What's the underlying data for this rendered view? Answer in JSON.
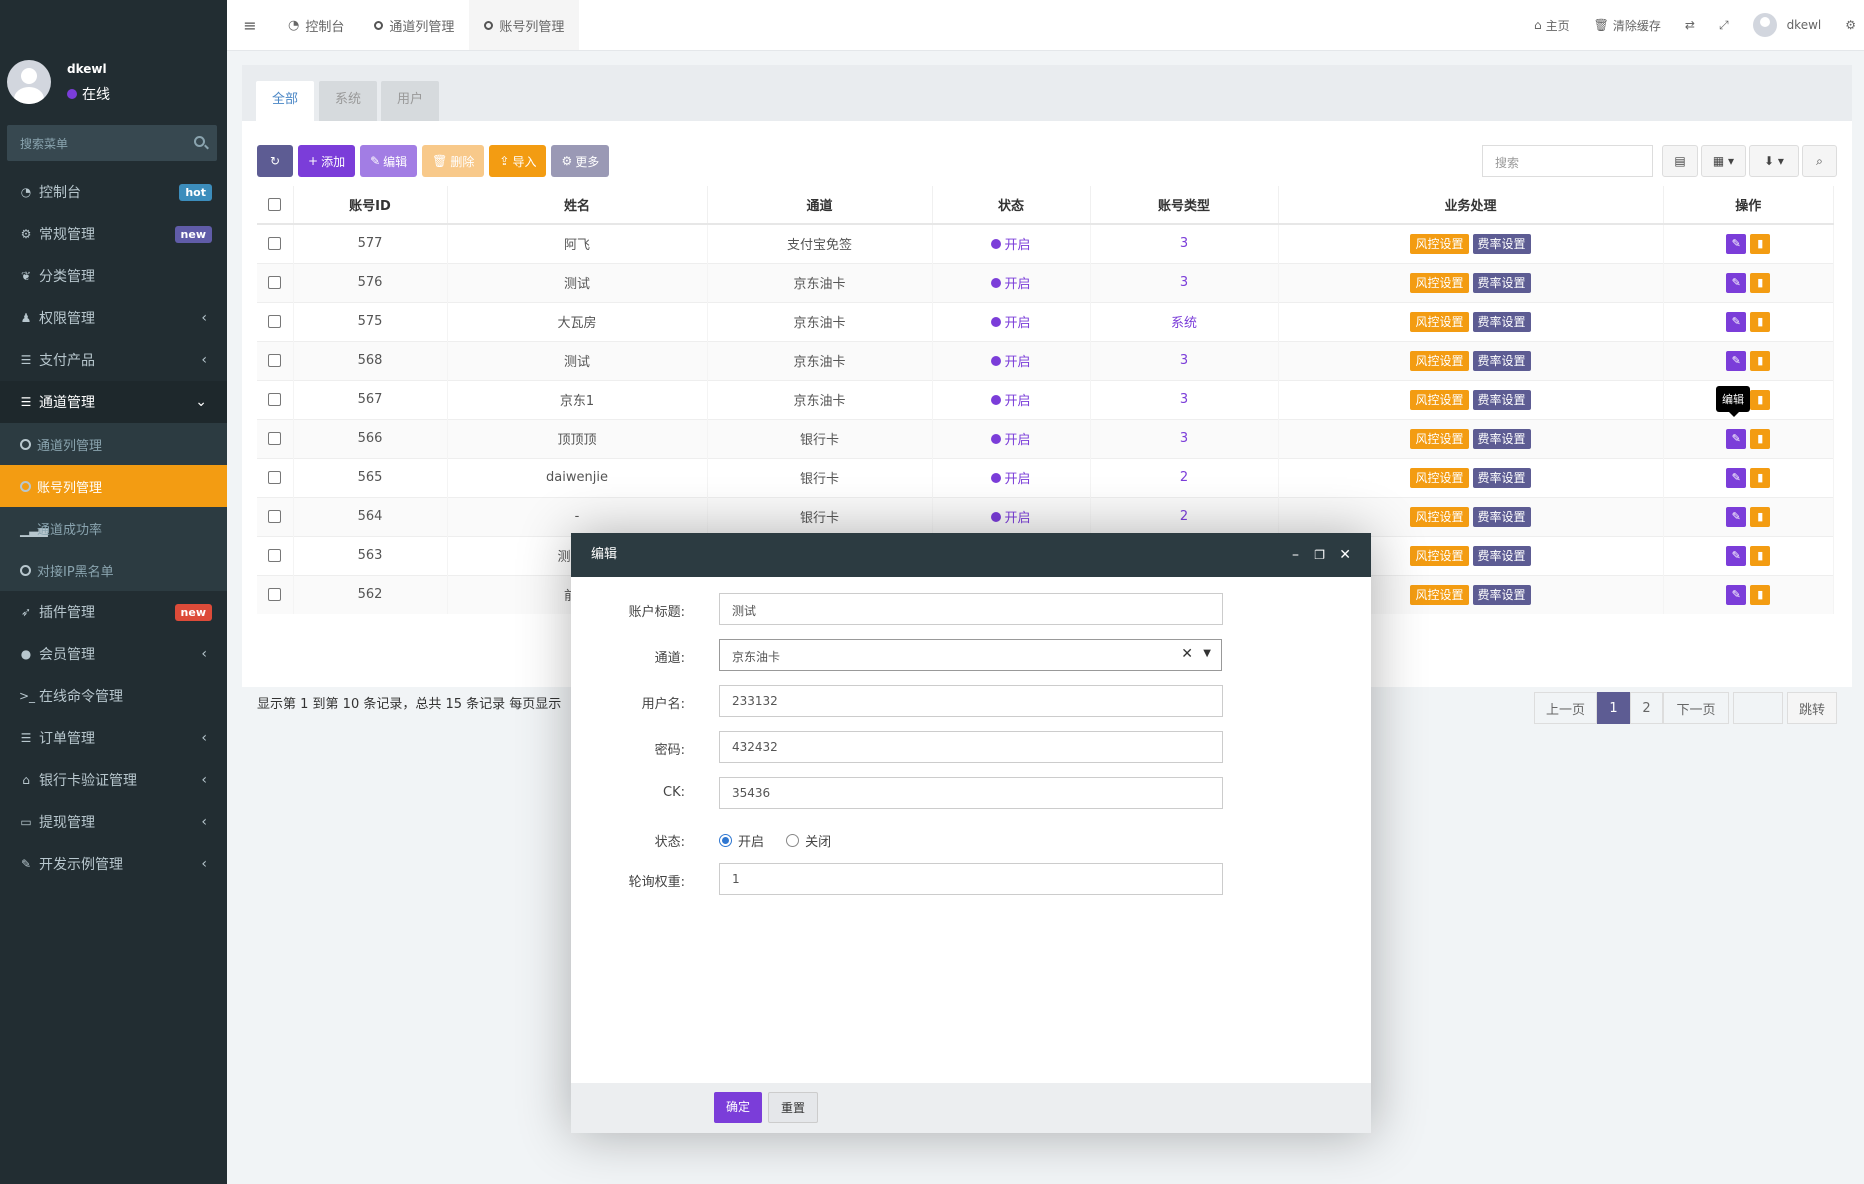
{
  "sidebar": {
    "user_name": "dkewl",
    "user_status": "在线",
    "search_placeholder": "搜索菜单",
    "items": [
      {
        "label": "控制台",
        "badge": "hot",
        "badge_color": "#3c8dbc"
      },
      {
        "label": "常规管理",
        "badge": "new",
        "badge_color": "#605ca8"
      },
      {
        "label": "分类管理"
      },
      {
        "label": "权限管理",
        "arrow": "‹"
      },
      {
        "label": "支付产品",
        "arrow": "‹"
      },
      {
        "label": "通道管理",
        "arrow": "⌄"
      },
      {
        "label": "插件管理",
        "badge": "new",
        "badge_color": "#dd4b39"
      },
      {
        "label": "会员管理",
        "arrow": "‹"
      },
      {
        "label": "在线命令管理"
      },
      {
        "label": "订单管理",
        "arrow": "‹"
      },
      {
        "label": "银行卡验证管理",
        "arrow": "‹"
      },
      {
        "label": "提现管理",
        "arrow": "‹"
      },
      {
        "label": "开发示例管理",
        "arrow": "‹"
      }
    ],
    "sub_items": [
      {
        "label": "通道列管理"
      },
      {
        "label": "账号列管理"
      },
      {
        "label": "通道成功率"
      },
      {
        "label": "对接IP黑名单"
      }
    ]
  },
  "navbar": {
    "tabs": [
      "控制台",
      "通道列管理",
      "账号列管理"
    ],
    "home": "主页",
    "clear_cache": "清除缓存",
    "user": "dkewl"
  },
  "panel": {
    "tabs": [
      "全部",
      "系统",
      "用户"
    ],
    "toolbar": {
      "add": "添加",
      "edit": "编辑",
      "delete": "删除",
      "import": "导入",
      "more": "更多"
    },
    "search_placeholder": "搜索"
  },
  "table": {
    "headers": [
      "账号ID",
      "姓名",
      "通道",
      "状态",
      "账号类型",
      "业务处理",
      "操作"
    ],
    "rows": [
      {
        "id": "577",
        "name": "阿飞",
        "channel": "支付宝免签",
        "status": "开启",
        "type": "3"
      },
      {
        "id": "576",
        "name": "测试",
        "channel": "京东油卡",
        "status": "开启",
        "type": "3"
      },
      {
        "id": "575",
        "name": "大瓦房",
        "channel": "京东油卡",
        "status": "开启",
        "type": "系统"
      },
      {
        "id": "568",
        "name": "测试",
        "channel": "京东油卡",
        "status": "开启",
        "type": "3"
      },
      {
        "id": "567",
        "name": "京东1",
        "channel": "京东油卡",
        "status": "开启",
        "type": "3"
      },
      {
        "id": "566",
        "name": "顶顶顶",
        "channel": "银行卡",
        "status": "开启",
        "type": "3"
      },
      {
        "id": "565",
        "name": "daiwenjie",
        "channel": "银行卡",
        "status": "开启",
        "type": "2"
      },
      {
        "id": "564",
        "name": "-",
        "channel": "银行卡",
        "status": "开启",
        "type": "2"
      },
      {
        "id": "563",
        "name": "测试卖",
        "channel": "",
        "status": "",
        "type": ""
      },
      {
        "id": "562",
        "name": "前台",
        "channel": "",
        "status": "",
        "type": ""
      }
    ],
    "risk_label": "风控设置",
    "rate_label": "费率设置"
  },
  "tooltip": "编辑",
  "pagination": {
    "info": "显示第 1 到第 10 条记录，总共 15 条记录 每页显示",
    "prev": "上一页",
    "pages": [
      "1",
      "2"
    ],
    "next": "下一页",
    "jump": "跳转"
  },
  "modal": {
    "title": "编辑",
    "fields": {
      "title_label": "账户标题:",
      "title_value": "测试",
      "channel_label": "通道:",
      "channel_value": "京东油卡",
      "username_label": "用户名:",
      "username_value": "233132",
      "password_label": "密码:",
      "password_value": "432432",
      "ck_label": "CK:",
      "ck_value": "35436",
      "status_label": "状态:",
      "status_on": "开启",
      "status_off": "关闭",
      "weight_label": "轮询权重:",
      "weight_value": "1"
    },
    "confirm": "确定",
    "reset": "重置"
  },
  "colors": {
    "purple": "#7b3dd9",
    "orange": "#f39c12",
    "sidebar": "#222d32",
    "rate": "#5d5c93"
  }
}
